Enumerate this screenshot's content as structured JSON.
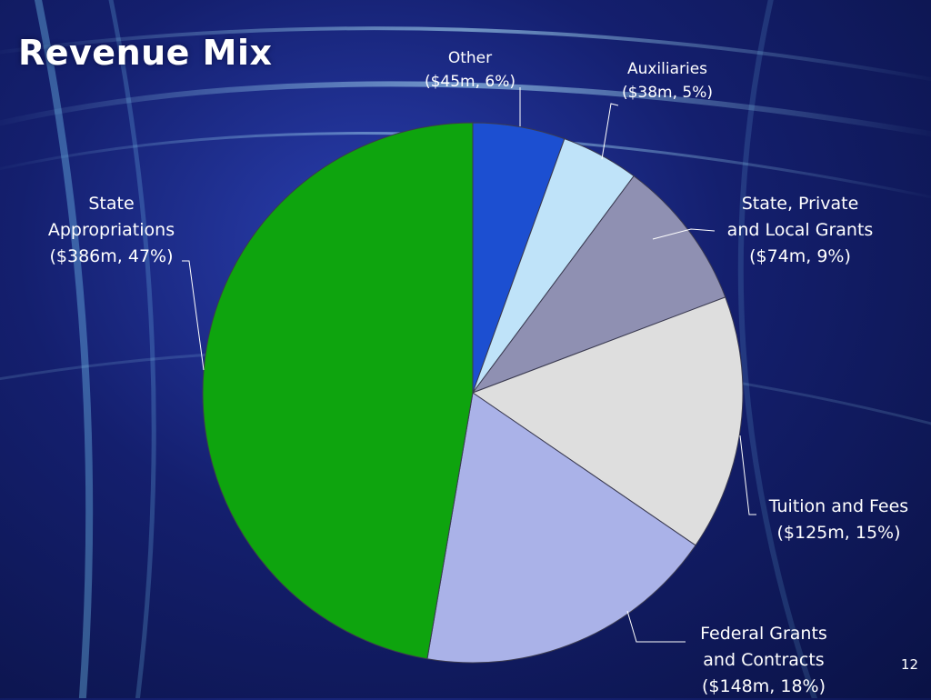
{
  "slide": {
    "title": "Revenue Mix",
    "page_number": "12"
  },
  "chart_data": {
    "type": "pie",
    "title": "Revenue Mix",
    "unit": "$m",
    "slices": [
      {
        "name": "Other",
        "value": 45,
        "percent": 6,
        "color": "#1c4fd1",
        "label_lines": [
          "Other",
          "($45m, 6%)"
        ]
      },
      {
        "name": "Auxiliaries",
        "value": 38,
        "percent": 5,
        "color": "#bfe3f9",
        "label_lines": [
          "Auxiliaries",
          "($38m, 5%)"
        ]
      },
      {
        "name": "State, Private and Local Grants",
        "value": 74,
        "percent": 9,
        "color": "#8f90b2",
        "label_lines": [
          "State, Private",
          "and Local Grants",
          "($74m, 9%)"
        ]
      },
      {
        "name": "Tuition and Fees",
        "value": 125,
        "percent": 15,
        "color": "#dedede",
        "label_lines": [
          "Tuition and Fees",
          "($125m, 15%)"
        ]
      },
      {
        "name": "Federal Grants and Contracts",
        "value": 148,
        "percent": 18,
        "color": "#aab2e8",
        "label_lines": [
          "Federal Grants",
          "and Contracts",
          "($148m, 18%)"
        ]
      },
      {
        "name": "State Appropriations",
        "value": 386,
        "percent": 47,
        "color": "#0ea40e",
        "label_lines": [
          "State",
          "Appropriations",
          "($386m, 47%)"
        ]
      }
    ],
    "start_angle_deg": 0,
    "direction": "clockwise",
    "legend": "none"
  }
}
